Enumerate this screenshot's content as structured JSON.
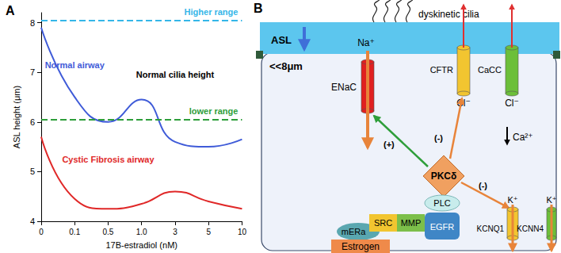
{
  "chart_data": {
    "type": "line",
    "panel_label": "A",
    "x_label": "17B-estradiol (nM)",
    "y_label": "ASL height (μm)",
    "categories": [
      "0",
      "0.1",
      "0.5",
      "1.0",
      "3",
      "5",
      "10"
    ],
    "series": [
      {
        "name": "Normal airway",
        "color": "#3f5bd8",
        "values": [
          7.9,
          6.5,
          6.0,
          6.45,
          5.6,
          5.5,
          5.65
        ]
      },
      {
        "name": "Cystic Fibrosis airway",
        "color": "#e02828",
        "values": [
          5.7,
          4.45,
          4.25,
          4.35,
          4.6,
          4.4,
          4.25
        ]
      }
    ],
    "ylim": [
      4,
      8.2
    ],
    "yticks": [
      4,
      5,
      6,
      7,
      8
    ],
    "reference_lines": [
      {
        "label": "Higher range",
        "value": 8.05,
        "color": "#35b6e8",
        "line_style": "dashed"
      },
      {
        "label": "lower range",
        "value": 6.05,
        "color": "#2e9e3a",
        "line_style": "dashed"
      }
    ],
    "annotations": [
      "Normal cilia height"
    ],
    "grid": false
  },
  "diagram": {
    "panel_label": "B",
    "apical": {
      "label": "ASL",
      "height": "<<8μm",
      "cilia": "dyskinetic cilia"
    },
    "channels": [
      {
        "name": "ENaC",
        "ion": "Na⁺",
        "color": "#e02020"
      },
      {
        "name": "CFTR",
        "ion": "Cl⁻",
        "color": "#f2c530"
      },
      {
        "name": "CaCC",
        "ion": "Cl⁻",
        "color": "#6cbf3a"
      },
      {
        "name": "KCNQ1",
        "ion": "K⁺",
        "color": "#f2c530"
      },
      {
        "name": "KCNN4",
        "ion": "K⁺",
        "color": "#6cbf3a"
      }
    ],
    "calcium": "Ca²⁺",
    "kinase": "PKCδ",
    "effects": [
      "(+)",
      "(-)",
      "(-)"
    ],
    "signaling": [
      "PLC",
      "EGFR",
      "MMP",
      "SRC",
      "mERa",
      "Estrogen"
    ]
  }
}
